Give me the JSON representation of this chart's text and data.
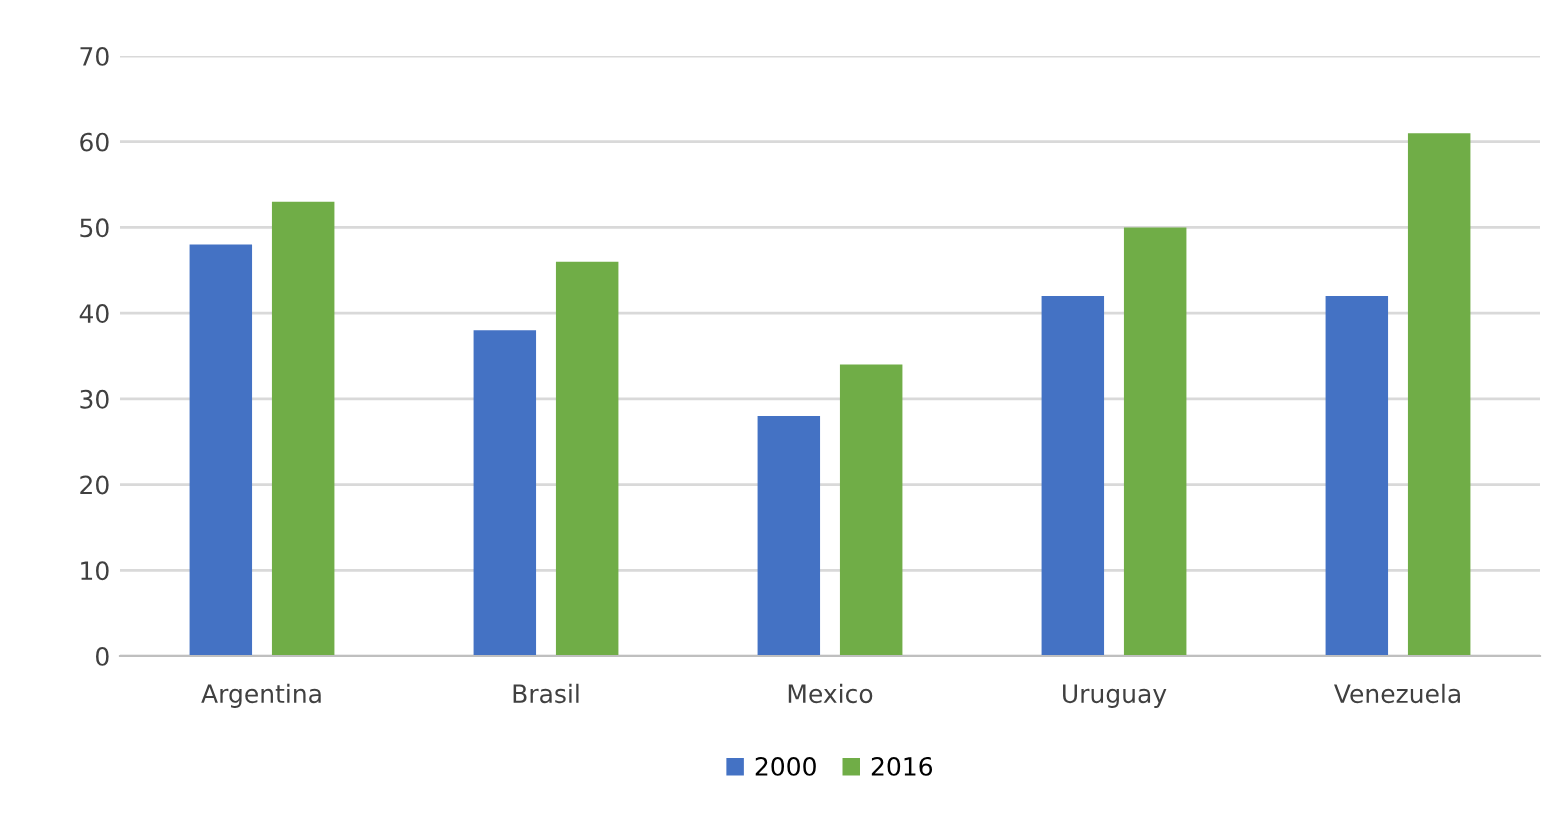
{
  "chart_data": {
    "type": "bar",
    "categories": [
      "Argentina",
      "Brasil",
      "Mexico",
      "Uruguay",
      "Venezuela"
    ],
    "series": [
      {
        "name": "2000",
        "color": "#4472c4",
        "values": [
          48,
          38,
          28,
          42,
          42
        ]
      },
      {
        "name": "2016",
        "color": "#70ad47",
        "values": [
          53,
          46,
          34,
          50,
          61
        ]
      }
    ],
    "ylim": [
      0,
      70
    ],
    "yticks": [
      0,
      10,
      20,
      30,
      40,
      50,
      60,
      70
    ],
    "grid": "y",
    "legend": "bottom"
  }
}
